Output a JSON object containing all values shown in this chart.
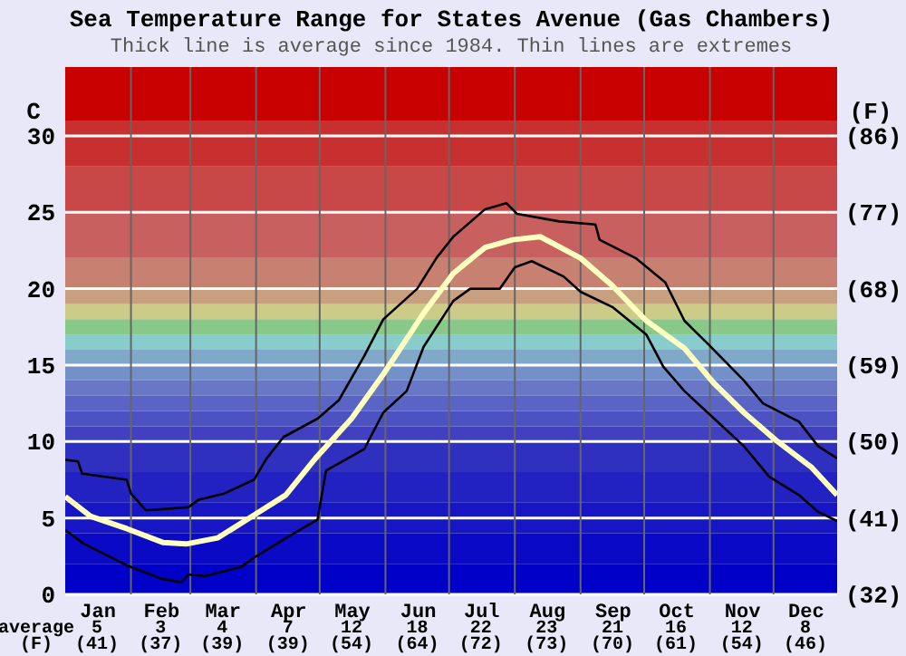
{
  "chart_data": {
    "type": "line",
    "title": "Sea Temperature Range for States Avenue (Gas Chambers)",
    "subtitle": "Thick line is average since 1984. Thin lines are extremes",
    "ylabel": "C",
    "y2label": "(F)",
    "xlim": [
      "--01-01",
      "--12-31"
    ],
    "xticks": [
      {
        "value": "--01-16",
        "label": "Jan"
      },
      {
        "value": "--02-15",
        "label": "Feb"
      },
      {
        "value": "--03-16",
        "label": "Mar"
      },
      {
        "value": "--04-16",
        "label": "Apr"
      },
      {
        "value": "--05-16",
        "label": "May"
      },
      {
        "value": "--06-16",
        "label": "Jun"
      },
      {
        "value": "--07-16",
        "label": "Jul"
      },
      {
        "value": "--08-16",
        "label": "Aug"
      },
      {
        "value": "--09-16",
        "label": "Sep"
      },
      {
        "value": "--10-16",
        "label": "Oct"
      },
      {
        "value": "--11-16",
        "label": "Nov"
      },
      {
        "value": "--12-16",
        "label": "Dec"
      }
    ],
    "ylim": [
      0,
      34.5
    ],
    "yticks": [
      0,
      5,
      10,
      15,
      20,
      25,
      30
    ],
    "y2lim": [
      32,
      94.1
    ],
    "y2ticks": [
      {
        "value": 32,
        "label": "(32)"
      },
      {
        "value": 41,
        "label": "(41)"
      },
      {
        "value": 50,
        "label": "(50)"
      },
      {
        "value": 59,
        "label": "(59)"
      },
      {
        "value": 68,
        "label": "(68)"
      },
      {
        "value": 77,
        "label": "(77)"
      },
      {
        "value": 86,
        "label": "(86)"
      }
    ],
    "grid": "y",
    "annotations": [
      "average",
      "(F)",
      "5",
      "(41)",
      "3",
      "(37)",
      "4",
      "(39)",
      "7",
      "(39)",
      "12",
      "(54)",
      "18",
      "(64)",
      "22",
      "(72)",
      "23",
      "(73)",
      "21",
      "(70)",
      "16",
      "(61)",
      "12",
      "(54)",
      "8",
      "(46)"
    ],
    "ref_lines": [
      {
        "axis": "x",
        "value": "--02-01",
        "color": "#666666"
      },
      {
        "axis": "x",
        "value": "--03-01",
        "color": "#666666"
      },
      {
        "axis": "x",
        "value": "--04-01",
        "color": "#666666"
      },
      {
        "axis": "x",
        "value": "--05-01",
        "color": "#666666"
      },
      {
        "axis": "x",
        "value": "--06-01",
        "color": "#666666"
      },
      {
        "axis": "x",
        "value": "--07-01",
        "color": "#666666"
      },
      {
        "axis": "x",
        "value": "--08-01",
        "color": "#666666"
      },
      {
        "axis": "x",
        "value": "--09-01",
        "color": "#666666"
      },
      {
        "axis": "x",
        "value": "--10-01",
        "color": "#666666"
      },
      {
        "axis": "x",
        "value": "--11-01",
        "color": "#666666"
      },
      {
        "axis": "x",
        "value": "--12-01",
        "color": "#666666"
      }
    ],
    "bands": [
      {
        "axis": "y",
        "from": 0,
        "to": 2,
        "color": "#0000c8"
      },
      {
        "axis": "y",
        "from": 2,
        "to": 4,
        "color": "#0a0ac6"
      },
      {
        "axis": "y",
        "from": 4,
        "to": 6,
        "color": "#1616c4"
      },
      {
        "axis": "y",
        "from": 6,
        "to": 8,
        "color": "#2222c2"
      },
      {
        "axis": "y",
        "from": 8,
        "to": 10,
        "color": "#3030c0"
      },
      {
        "axis": "y",
        "from": 10,
        "to": 11,
        "color": "#4040c0"
      },
      {
        "axis": "y",
        "from": 11,
        "to": 12,
        "color": "#4c52c2"
      },
      {
        "axis": "y",
        "from": 12,
        "to": 13,
        "color": "#5a64c4"
      },
      {
        "axis": "y",
        "from": 13,
        "to": 14,
        "color": "#6878c6"
      },
      {
        "axis": "y",
        "from": 14,
        "to": 15,
        "color": "#7490c8"
      },
      {
        "axis": "y",
        "from": 15,
        "to": 16,
        "color": "#80a8c8"
      },
      {
        "axis": "y",
        "from": 16,
        "to": 17,
        "color": "#88cccc"
      },
      {
        "axis": "y",
        "from": 17,
        "to": 18,
        "color": "#88c888"
      },
      {
        "axis": "y",
        "from": 18,
        "to": 19,
        "color": "#cccc88"
      },
      {
        "axis": "y",
        "from": 19,
        "to": 20,
        "color": "#c8a080"
      },
      {
        "axis": "y",
        "from": 20,
        "to": 22,
        "color": "#c88070"
      },
      {
        "axis": "y",
        "from": 22,
        "to": 25,
        "color": "#c86060"
      },
      {
        "axis": "y",
        "from": 25,
        "to": 28,
        "color": "#c84848"
      },
      {
        "axis": "y",
        "from": 28,
        "to": 31,
        "color": "#c83030"
      },
      {
        "axis": "y",
        "from": 31,
        "to": 34.5,
        "color": "#c80000"
      }
    ],
    "series": [
      {
        "color": "#000000",
        "x": [
          "--01-01",
          "--01-07",
          "--01-09",
          "--01-30",
          "--02-01",
          "--02-08",
          "--02-28",
          "--03-05",
          "--03-17",
          "--03-31",
          "--04-06",
          "--04-14",
          "--04-30",
          "--05-10",
          "--05-22",
          "--05-31",
          "--06-16",
          "--06-25",
          "--07-03",
          "--07-18",
          "--07-28",
          "--08-02",
          "--08-22",
          "--09-08",
          "--09-10",
          "--09-27",
          "--10-11",
          "--10-20",
          "--10-31",
          "--11-17",
          "--11-26",
          "--12-13",
          "--12-22",
          "--12-31"
        ],
        "values": [
          8.8,
          8.7,
          7.9,
          7.5,
          6.6,
          5.5,
          5.7,
          6.2,
          6.6,
          7.5,
          8.9,
          10.3,
          11.5,
          12.7,
          15.6,
          18.0,
          20.0,
          22.0,
          23.4,
          25.2,
          25.6,
          24.9,
          24.4,
          24.2,
          23.2,
          22.0,
          20.4,
          17.9,
          16.4,
          14.0,
          12.5,
          11.3,
          9.7,
          8.9
        ]
      },
      {
        "color": "#ffffc0",
        "x": [
          "--01-01",
          "--01-13",
          "--01-30",
          "--02-16",
          "--02-27",
          "--03-14",
          "--03-30",
          "--04-15",
          "--04-29",
          "--05-16",
          "--05-31",
          "--06-19",
          "--07-03",
          "--07-18",
          "--07-31",
          "--08-13",
          "--09-01",
          "--09-16",
          "--10-02",
          "--10-20",
          "--11-03",
          "--11-17",
          "--12-02",
          "--12-19",
          "--12-31"
        ],
        "values": [
          6.4,
          5.1,
          4.3,
          3.4,
          3.3,
          3.7,
          5.1,
          6.5,
          8.9,
          11.5,
          14.4,
          18.4,
          21.0,
          22.7,
          23.2,
          23.4,
          22.0,
          20.2,
          17.9,
          16.1,
          13.8,
          11.9,
          10.1,
          8.3,
          6.5
        ]
      },
      {
        "color": "#000000",
        "x": [
          "--01-01",
          "--01-10",
          "--01-30",
          "--02-16",
          "--02-25",
          "--02-28",
          "--03-08",
          "--03-25",
          "--03-31",
          "--04-14",
          "--04-30",
          "--05-04",
          "--05-22",
          "--05-31",
          "--06-11",
          "--06-19",
          "--07-03",
          "--07-11",
          "--07-25",
          "--08-01",
          "--08-09",
          "--08-24",
          "--09-01",
          "--09-16",
          "--10-02",
          "--10-10",
          "--10-20",
          "--11-03",
          "--11-17",
          "--11-29",
          "--12-13",
          "--12-22",
          "--12-31"
        ],
        "values": [
          4.2,
          3.3,
          1.9,
          1.0,
          0.8,
          1.3,
          1.2,
          1.8,
          2.4,
          3.6,
          4.9,
          8.1,
          9.5,
          11.9,
          13.3,
          16.2,
          19.2,
          20.0,
          20.0,
          21.4,
          21.8,
          20.8,
          19.8,
          18.8,
          17.0,
          14.9,
          13.3,
          11.5,
          9.7,
          7.7,
          6.5,
          5.4,
          4.8
        ]
      }
    ]
  }
}
